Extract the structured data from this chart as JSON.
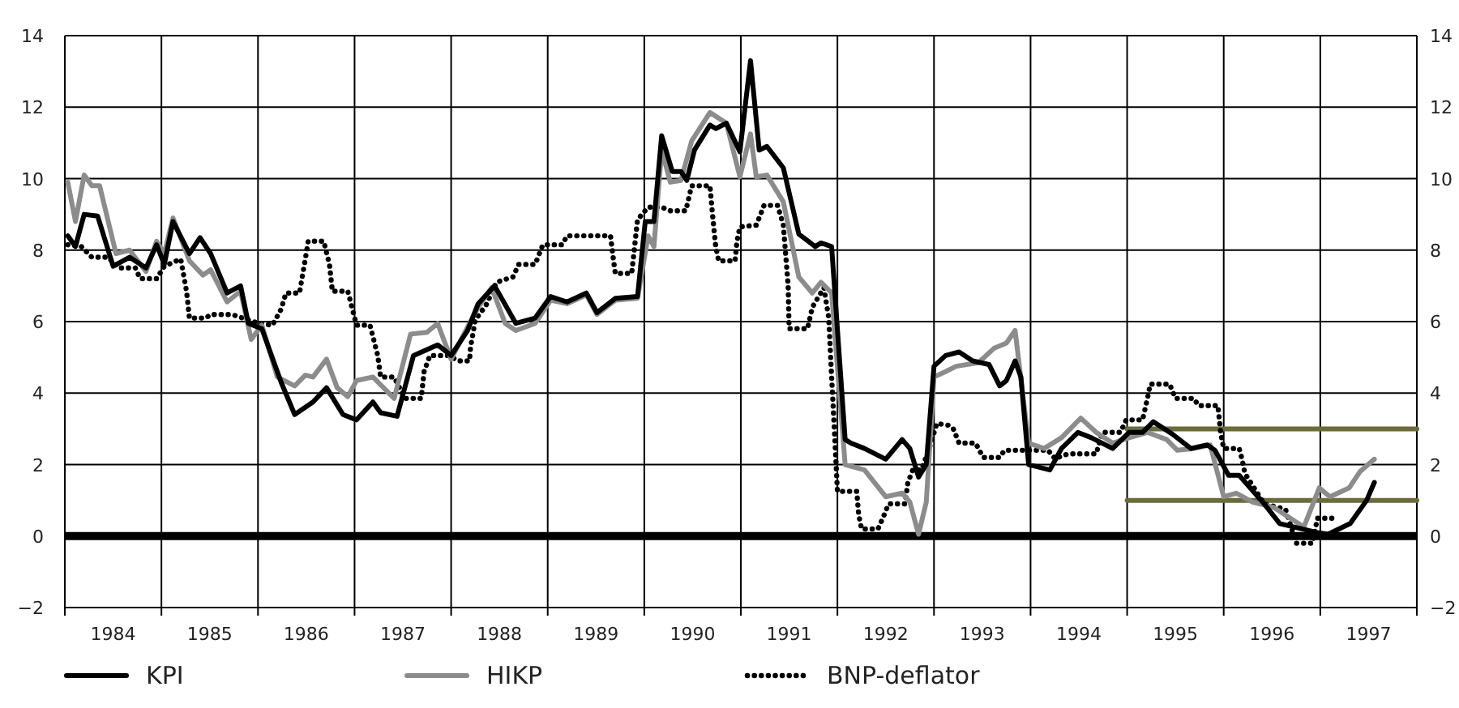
{
  "chart_data": {
    "type": "line",
    "xlim": [
      1984,
      1998
    ],
    "xticks": [
      {
        "value": 1984,
        "label": null
      },
      {
        "value": 1984.5,
        "label": "1984"
      },
      {
        "value": 1985,
        "label": null
      },
      {
        "value": 1985.5,
        "label": "1985"
      },
      {
        "value": 1986,
        "label": null
      },
      {
        "value": 1986.5,
        "label": "1986"
      },
      {
        "value": 1987,
        "label": null
      },
      {
        "value": 1987.5,
        "label": "1987"
      },
      {
        "value": 1988,
        "label": null
      },
      {
        "value": 1988.5,
        "label": "1988"
      },
      {
        "value": 1989,
        "label": null
      },
      {
        "value": 1989.5,
        "label": "1989"
      },
      {
        "value": 1990,
        "label": null
      },
      {
        "value": 1990.5,
        "label": "1990"
      },
      {
        "value": 1991,
        "label": null
      },
      {
        "value": 1991.5,
        "label": "1991"
      },
      {
        "value": 1992,
        "label": null
      },
      {
        "value": 1992.5,
        "label": "1992"
      },
      {
        "value": 1993,
        "label": null
      },
      {
        "value": 1993.5,
        "label": "1993"
      },
      {
        "value": 1994,
        "label": null
      },
      {
        "value": 1994.5,
        "label": "1994"
      },
      {
        "value": 1995,
        "label": null
      },
      {
        "value": 1995.5,
        "label": "1995"
      },
      {
        "value": 1996,
        "label": null
      },
      {
        "value": 1996.5,
        "label": "1996"
      },
      {
        "value": 1997,
        "label": null
      },
      {
        "value": 1997.5,
        "label": "1997"
      },
      {
        "value": 1998,
        "label": null
      }
    ],
    "ylim": [
      -2,
      14
    ],
    "yticks": [
      -2,
      0,
      2,
      4,
      6,
      8,
      10,
      12,
      14
    ],
    "y2lim": [
      -2,
      14
    ],
    "y2ticks": [
      -2,
      0,
      2,
      4,
      6,
      8,
      10,
      12,
      14
    ],
    "grid": true,
    "legend": "bottom",
    "marker": "none",
    "ref_lines": [
      {
        "axis": "y",
        "value": 0,
        "label": null,
        "color": "#000000"
      }
    ],
    "series": [
      {
        "name": "KPI",
        "color": "#000000",
        "line_style": "solid",
        "x": [
          1984.03,
          1984.11,
          1984.2,
          1984.34,
          1984.5,
          1984.67,
          1984.84,
          1984.95,
          1985.03,
          1985.12,
          1985.29,
          1985.4,
          1985.51,
          1985.68,
          1985.82,
          1985.9,
          1986.04,
          1986.24,
          1986.38,
          1986.57,
          1986.71,
          1986.88,
          1987.02,
          1987.19,
          1987.27,
          1987.44,
          1987.61,
          1987.86,
          1988.0,
          1988.17,
          1988.28,
          1988.45,
          1988.67,
          1988.87,
          1989.03,
          1989.2,
          1989.4,
          1989.51,
          1989.7,
          1989.93,
          1990.01,
          1990.1,
          1990.18,
          1990.29,
          1990.38,
          1990.44,
          1990.52,
          1990.68,
          1990.74,
          1990.85,
          1990.99,
          1991.1,
          1991.19,
          1991.27,
          1991.44,
          1991.6,
          1991.77,
          1991.83,
          1991.94,
          1992.08,
          1992.14,
          1992.28,
          1992.5,
          1992.67,
          1992.75,
          1992.84,
          1992.92,
          1993.0,
          1993.12,
          1993.26,
          1993.4,
          1993.57,
          1993.68,
          1993.75,
          1993.84,
          1993.9,
          1993.98,
          1994.2,
          1994.32,
          1994.49,
          1994.63,
          1994.85,
          1995.02,
          1995.16,
          1995.27,
          1995.47,
          1995.66,
          1995.83,
          1995.91,
          1996.05,
          1996.16,
          1996.42,
          1996.58,
          1996.81,
          1996.97,
          1997.08,
          1997.31,
          1997.48,
          1997.56
        ],
        "values": [
          8.4,
          8.1,
          9.0,
          8.95,
          7.55,
          7.8,
          7.5,
          8.15,
          7.6,
          8.8,
          7.9,
          8.35,
          7.9,
          6.8,
          7.0,
          5.95,
          5.8,
          4.3,
          3.4,
          3.75,
          4.15,
          3.4,
          3.25,
          3.75,
          3.45,
          3.35,
          5.05,
          5.35,
          5.05,
          5.75,
          6.5,
          7.0,
          5.95,
          6.1,
          6.7,
          6.55,
          6.8,
          6.25,
          6.65,
          6.7,
          8.8,
          8.8,
          11.2,
          10.2,
          10.2,
          9.95,
          10.8,
          11.5,
          11.4,
          11.55,
          10.75,
          13.3,
          10.8,
          10.9,
          10.3,
          8.45,
          8.1,
          8.2,
          8.1,
          2.7,
          2.6,
          2.45,
          2.15,
          2.7,
          2.45,
          1.65,
          2.0,
          4.75,
          5.05,
          5.15,
          4.9,
          4.8,
          4.2,
          4.35,
          4.9,
          4.45,
          2.0,
          1.85,
          2.45,
          2.9,
          2.75,
          2.45,
          2.9,
          2.9,
          3.2,
          2.85,
          2.45,
          2.55,
          2.4,
          1.7,
          1.7,
          0.9,
          0.35,
          0.2,
          0.1,
          0.05,
          0.35,
          1.0,
          1.5
        ]
      },
      {
        "name": "HIKP",
        "color": "#8c8c8c",
        "line_style": "solid",
        "x": [
          1984.03,
          1984.11,
          1984.2,
          1984.28,
          1984.36,
          1984.53,
          1984.67,
          1984.84,
          1984.95,
          1985.03,
          1985.12,
          1985.29,
          1985.43,
          1985.51,
          1985.68,
          1985.82,
          1985.93,
          1986.04,
          1986.2,
          1986.38,
          1986.49,
          1986.57,
          1986.71,
          1986.82,
          1986.93,
          1987.02,
          1987.19,
          1987.41,
          1987.58,
          1987.75,
          1987.86,
          1988.0,
          1988.19,
          1988.28,
          1988.42,
          1988.56,
          1988.67,
          1988.87,
          1989.03,
          1989.2,
          1989.4,
          1989.51,
          1989.7,
          1989.93,
          1990.04,
          1990.1,
          1990.18,
          1990.27,
          1990.38,
          1990.49,
          1990.68,
          1990.85,
          1990.99,
          1991.1,
          1991.16,
          1991.27,
          1991.44,
          1991.6,
          1991.74,
          1991.83,
          1991.94,
          1992.08,
          1992.28,
          1992.5,
          1992.67,
          1992.75,
          1992.84,
          1992.92,
          1993.0,
          1993.12,
          1993.23,
          1993.46,
          1993.62,
          1993.75,
          1993.84,
          1993.98,
          1994.14,
          1994.32,
          1994.52,
          1994.68,
          1994.85,
          1995.02,
          1995.21,
          1995.41,
          1995.52,
          1995.69,
          1995.86,
          1996.0,
          1996.13,
          1996.3,
          1996.52,
          1996.69,
          1996.83,
          1996.99,
          1997.1,
          1997.3,
          1997.41,
          1997.56
        ],
        "values": [
          9.9,
          8.8,
          10.1,
          9.8,
          9.8,
          7.9,
          8.0,
          7.4,
          8.25,
          7.9,
          8.9,
          7.7,
          7.3,
          7.45,
          6.55,
          6.85,
          5.5,
          5.9,
          4.45,
          4.2,
          4.5,
          4.45,
          4.95,
          4.15,
          3.9,
          4.35,
          4.45,
          3.85,
          5.65,
          5.7,
          5.95,
          4.95,
          5.95,
          6.4,
          6.95,
          5.95,
          5.75,
          5.95,
          6.6,
          6.5,
          6.75,
          6.2,
          6.6,
          6.65,
          8.4,
          8.1,
          10.8,
          9.9,
          9.95,
          11.05,
          11.85,
          11.55,
          10.05,
          11.25,
          10.05,
          10.1,
          9.35,
          7.25,
          6.8,
          7.1,
          6.8,
          2.0,
          1.85,
          1.1,
          1.2,
          0.95,
          0.05,
          0.95,
          4.45,
          4.6,
          4.75,
          4.85,
          5.25,
          5.4,
          5.75,
          2.6,
          2.45,
          2.75,
          3.3,
          2.9,
          2.6,
          2.75,
          2.9,
          2.7,
          2.4,
          2.45,
          2.55,
          1.1,
          1.2,
          0.95,
          0.8,
          0.5,
          0.25,
          1.35,
          1.1,
          1.35,
          1.8,
          2.15
        ]
      },
      {
        "name": "BNP-deflator",
        "color": "#000000",
        "line_style": "dotted",
        "x": [
          1984.03,
          1984.17,
          1984.28,
          1984.45,
          1984.56,
          1984.73,
          1984.78,
          1984.95,
          1985.03,
          1985.2,
          1985.26,
          1985.29,
          1985.46,
          1985.51,
          1985.73,
          1985.84,
          1986.01,
          1986.15,
          1986.24,
          1986.29,
          1986.43,
          1986.49,
          1986.52,
          1986.68,
          1986.74,
          1986.77,
          1986.93,
          1987.02,
          1987.16,
          1987.24,
          1987.27,
          1987.41,
          1987.52,
          1987.69,
          1987.72,
          1987.78,
          1987.97,
          1988.08,
          1988.19,
          1988.2,
          1988.25,
          1988.36,
          1988.47,
          1988.64,
          1988.7,
          1988.87,
          1988.95,
          1989.15,
          1989.2,
          1989.65,
          1989.68,
          1989.7,
          1989.87,
          1989.93,
          1990.04,
          1990.18,
          1990.27,
          1990.43,
          1990.49,
          1990.68,
          1990.71,
          1990.74,
          1990.77,
          1990.94,
          1990.96,
          1990.99,
          1991.16,
          1991.24,
          1991.38,
          1991.44,
          1991.49,
          1991.5,
          1991.69,
          1991.74,
          1991.86,
          1991.91,
          1991.94,
          1991.97,
          1992.0,
          1992.2,
          1992.22,
          1992.25,
          1992.42,
          1992.47,
          1992.53,
          1992.7,
          1992.73,
          1992.78,
          1992.87,
          1992.95,
          1993.03,
          1993.15,
          1993.2,
          1993.26,
          1993.43,
          1993.51,
          1993.68,
          1993.73,
          1994.18,
          1994.26,
          1994.32,
          1994.4,
          1994.68,
          1994.74,
          1994.93,
          1994.99,
          1995.16,
          1995.21,
          1995.24,
          1995.44,
          1995.5,
          1995.69,
          1995.74,
          1995.94,
          1995.97,
          1996.0,
          1996.16,
          1996.19,
          1996.22,
          1996.42,
          1996.64,
          1996.75,
          1996.92,
          1996.97,
          1997.16
        ],
        "values": [
          8.15,
          8.1,
          7.8,
          7.8,
          7.5,
          7.5,
          7.2,
          7.2,
          7.55,
          7.75,
          6.85,
          6.1,
          6.1,
          6.2,
          6.2,
          6.1,
          5.95,
          5.9,
          6.35,
          6.8,
          6.8,
          7.75,
          8.25,
          8.25,
          7.6,
          6.85,
          6.85,
          5.9,
          5.9,
          5.05,
          4.45,
          4.45,
          3.85,
          3.85,
          4.6,
          5.05,
          5.05,
          4.9,
          4.9,
          5.25,
          6.05,
          6.45,
          7.1,
          7.25,
          7.6,
          7.6,
          8.15,
          8.15,
          8.4,
          8.4,
          7.75,
          7.35,
          7.35,
          8.85,
          9.2,
          9.2,
          9.1,
          9.1,
          9.8,
          9.8,
          8.9,
          8.1,
          7.7,
          7.7,
          8.25,
          8.65,
          8.7,
          9.25,
          9.25,
          8.7,
          7.0,
          5.8,
          5.8,
          6.4,
          6.95,
          6.1,
          4.45,
          2.9,
          1.25,
          1.25,
          0.6,
          0.2,
          0.2,
          0.5,
          0.9,
          0.9,
          1.5,
          1.85,
          1.85,
          2.45,
          3.15,
          3.1,
          3.0,
          2.6,
          2.6,
          2.2,
          2.2,
          2.4,
          2.4,
          2.15,
          2.25,
          2.3,
          2.3,
          2.9,
          2.9,
          3.25,
          3.25,
          3.85,
          4.25,
          4.25,
          3.85,
          3.85,
          3.65,
          3.65,
          2.85,
          2.45,
          2.45,
          2.15,
          1.75,
          0.9,
          0.75,
          -0.2,
          -0.2,
          0.5,
          0.5
        ]
      },
      {
        "color": "#6b6b3c",
        "line_style": "solid",
        "x": [
          1995,
          1998
        ],
        "values": [
          3,
          3
        ]
      },
      {
        "color": "#6b6b3c",
        "line_style": "solid",
        "x": [
          1995,
          1998
        ],
        "values": [
          1,
          1
        ]
      }
    ]
  }
}
